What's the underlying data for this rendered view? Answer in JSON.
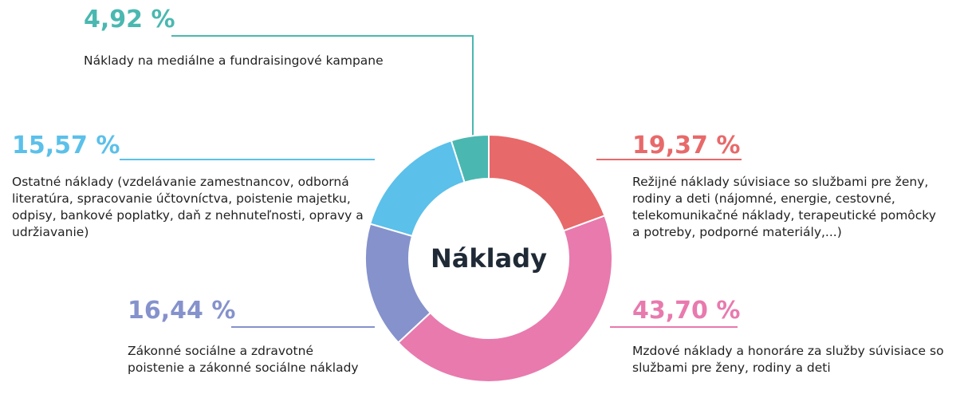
{
  "chart_data": {
    "type": "donut",
    "title": "Náklady",
    "categories": [
      "Režijné náklady súvisiace so službami pre ženy, rodiny a deti (nájomné, energie, cestovné, telekomunikačné náklady, terapeutické pomôcky a potreby, podporné materiály,...)",
      "Mzdové náklady a honoráre za služby súvisiace so službami pre ženy, rodiny a deti",
      "Zákonné sociálne a zdravotné poistenie a zákonné sociálne náklady",
      "Ostatné náklady (vzdelávanie zamestnancov, odborná literatúra, spracovanie účtovníctva, poistenie majetku, odpisy, bankové poplatky, daň z nehnuteľnosti, opravy a udržiavanie)",
      "Náklady na mediálne a fundraisingové kampane"
    ],
    "values": [
      19.37,
      43.7,
      16.44,
      15.57,
      4.92
    ],
    "value_labels": [
      "19,37 %",
      "43,70 %",
      "16,44 %",
      "15,57 %",
      "4,92 %"
    ],
    "colors": [
      "#e8696a",
      "#e87aae",
      "#8592cc",
      "#5bc0ea",
      "#4ab8b0"
    ]
  }
}
